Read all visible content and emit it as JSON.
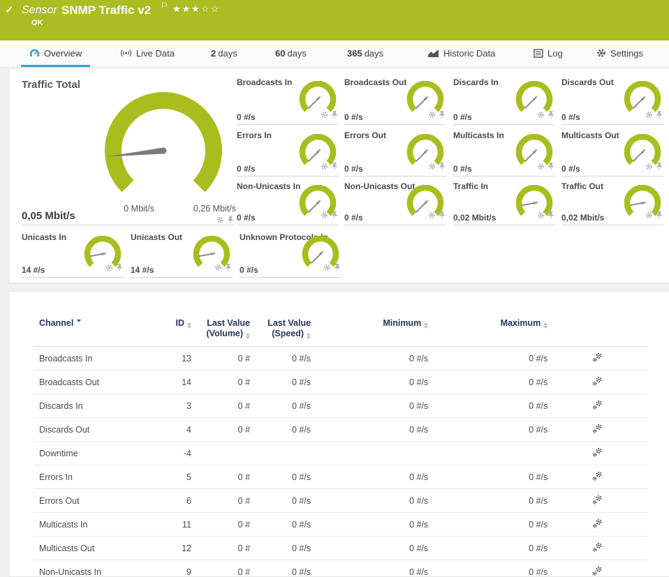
{
  "colors": {
    "brand_green": "#aabe23",
    "gauge_green": "#a9be1e",
    "accent_blue": "#28a2dd",
    "table_header_navy": "#24365b",
    "needle_gray": "#7b7b7b"
  },
  "topbar": {
    "kind": "Sensor",
    "title": "SNMP Traffic v2",
    "status": "OK",
    "rating": {
      "filled": 3,
      "total": 5
    }
  },
  "tabs": [
    {
      "label": "Overview",
      "icon": "gauge-icon",
      "active": true
    },
    {
      "label": "Live Data",
      "icon": "live-data-icon",
      "active": false
    },
    {
      "strong": "2",
      "label": "days",
      "active": false
    },
    {
      "strong": "60",
      "label": "days",
      "active": false
    },
    {
      "strong": "365",
      "label": "days",
      "active": false
    },
    {
      "label": "Historic Data",
      "icon": "historic-data-icon",
      "active": false
    },
    {
      "label": "Log",
      "icon": "log-icon",
      "active": false
    },
    {
      "label": "Settings",
      "icon": "settings-icon",
      "active": false
    }
  ],
  "gauges": {
    "main": {
      "label": "Traffic Total",
      "value": "0,05 Mbit/s",
      "min_label": "0 Mbit/s",
      "max_label": "0,26 Mbit/s",
      "needle_deg": -96
    },
    "small": [
      {
        "label": "Broadcasts In",
        "value": "0 #/s",
        "needle_deg": -135
      },
      {
        "label": "Broadcasts Out",
        "value": "0 #/s",
        "needle_deg": -135
      },
      {
        "label": "Discards In",
        "value": "0 #/s",
        "needle_deg": -135
      },
      {
        "label": "Discards Out",
        "value": "0 #/s",
        "needle_deg": -135
      },
      {
        "label": "Errors In",
        "value": "0 #/s",
        "needle_deg": -135
      },
      {
        "label": "Errors Out",
        "value": "0 #/s",
        "needle_deg": -135
      },
      {
        "label": "Multicasts In",
        "value": "0 #/s",
        "needle_deg": -135
      },
      {
        "label": "Multicasts Out",
        "value": "0 #/s",
        "needle_deg": -135
      },
      {
        "label": "Non-Unicasts In",
        "value": "0 #/s",
        "needle_deg": -135
      },
      {
        "label": "Non-Unicasts Out",
        "value": "0 #/s",
        "needle_deg": -135
      },
      {
        "label": "Traffic In",
        "value": "0,02 Mbit/s",
        "needle_deg": -100
      },
      {
        "label": "Traffic Out",
        "value": "0,02 Mbit/s",
        "needle_deg": -100
      },
      {
        "label": "Unicasts In",
        "value": "14 #/s",
        "needle_deg": -100
      },
      {
        "label": "Unicasts Out",
        "value": "14 #/s",
        "needle_deg": -100
      },
      {
        "label": "Unknown Protocols In",
        "value": "0 #/s",
        "needle_deg": -135
      }
    ]
  },
  "table": {
    "headers": [
      {
        "label": "Channel",
        "sorted": "desc"
      },
      {
        "label": "ID"
      },
      {
        "label": "Last Value (Volume)"
      },
      {
        "label": "Last Value (Speed)"
      },
      {
        "label": "Minimum"
      },
      {
        "label": "Maximum"
      },
      {
        "label": ""
      }
    ],
    "rows": [
      {
        "channel": "Broadcasts In",
        "id": "13",
        "volume": "0 #",
        "speed": "0 #/s",
        "min": "0 #/s",
        "max": "0 #/s"
      },
      {
        "channel": "Broadcasts Out",
        "id": "14",
        "volume": "0 #",
        "speed": "0 #/s",
        "min": "0 #/s",
        "max": "0 #/s"
      },
      {
        "channel": "Discards In",
        "id": "3",
        "volume": "0 #",
        "speed": "0 #/s",
        "min": "0 #/s",
        "max": "0 #/s"
      },
      {
        "channel": "Discards Out",
        "id": "4",
        "volume": "0 #",
        "speed": "0 #/s",
        "min": "0 #/s",
        "max": "0 #/s"
      },
      {
        "channel": "Downtime",
        "id": "-4",
        "volume": "",
        "speed": "",
        "min": "",
        "max": ""
      },
      {
        "channel": "Errors In",
        "id": "5",
        "volume": "0 #",
        "speed": "0 #/s",
        "min": "0 #/s",
        "max": "0 #/s"
      },
      {
        "channel": "Errors Out",
        "id": "6",
        "volume": "0 #",
        "speed": "0 #/s",
        "min": "0 #/s",
        "max": "0 #/s"
      },
      {
        "channel": "Multicasts In",
        "id": "11",
        "volume": "0 #",
        "speed": "0 #/s",
        "min": "0 #/s",
        "max": "0 #/s"
      },
      {
        "channel": "Multicasts Out",
        "id": "12",
        "volume": "0 #",
        "speed": "0 #/s",
        "min": "0 #/s",
        "max": "0 #/s"
      },
      {
        "channel": "Non-Unicasts In",
        "id": "9",
        "volume": "0 #",
        "speed": "0 #/s",
        "min": "0 #/s",
        "max": "0 #/s"
      }
    ]
  }
}
